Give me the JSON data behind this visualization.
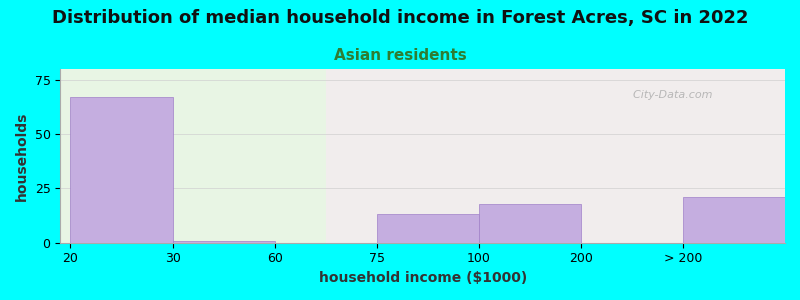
{
  "title": "Distribution of median household income in Forest Acres, SC in 2022",
  "subtitle": "Asian residents",
  "xlabel": "household income ($1000)",
  "ylabel": "households",
  "background_color": "#00FFFF",
  "bar_color": "#c5aee0",
  "bar_edge_color": "#a080c8",
  "values": [
    67,
    1,
    0,
    13,
    18,
    0,
    21
  ],
  "bar_lefts": [
    0,
    1,
    2,
    3,
    4,
    5,
    6
  ],
  "bar_widths": [
    1,
    1,
    1,
    1,
    1,
    1,
    1
  ],
  "xtick_pos": [
    0,
    1,
    2,
    3,
    4,
    5,
    6
  ],
  "xtick_labels": [
    "20",
    "30",
    "60",
    "75",
    "100",
    "200",
    "> 200"
  ],
  "ylim": [
    0,
    80
  ],
  "yticks": [
    0,
    25,
    50,
    75
  ],
  "title_fontsize": 13,
  "subtitle_fontsize": 11,
  "subtitle_color": "#2e7d32",
  "axis_label_fontsize": 10,
  "tick_fontsize": 9,
  "watermark": "  City-Data.com"
}
